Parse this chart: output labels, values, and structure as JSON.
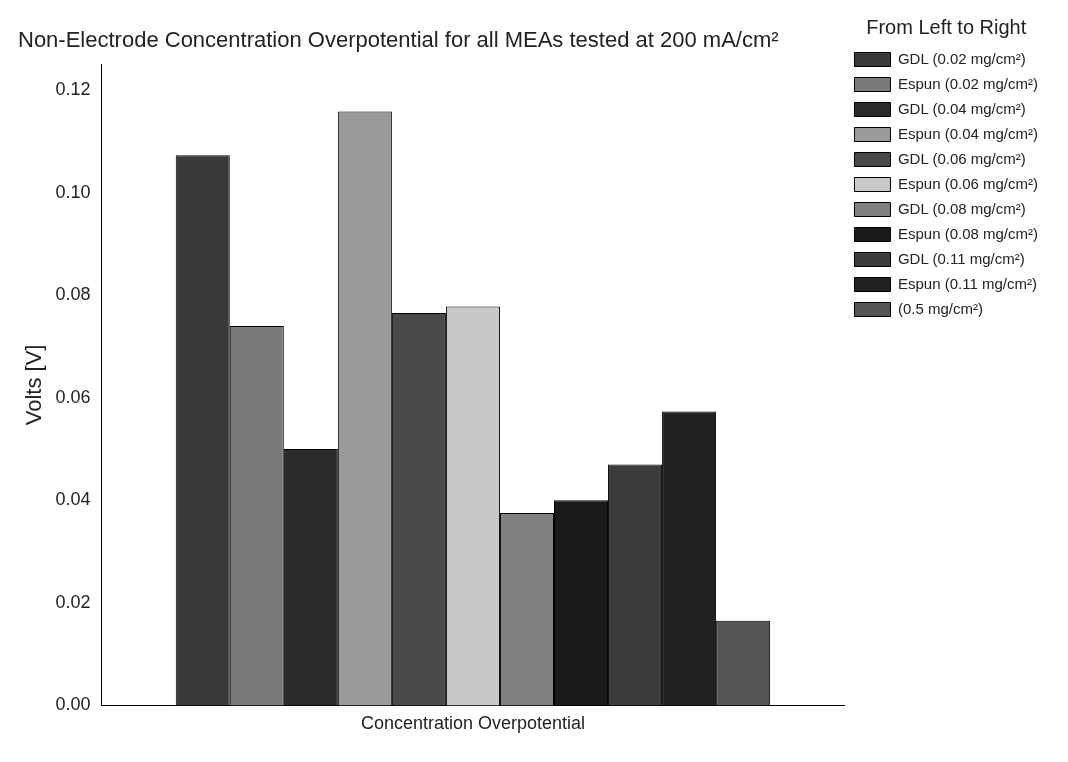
{
  "chart_data": {
    "type": "bar",
    "title": "Non-Electrode Concentration Overpotential for all MEAs tested at 200 mA/cm²",
    "ylabel": "Volts [V]",
    "legend_title": "From Left to Right",
    "categories": [
      "Concentration Overpotential"
    ],
    "series": [
      {
        "name": "GDL (0.02 mg/cm²)",
        "color": "#3a3a3a",
        "values": [
          0.1073
        ]
      },
      {
        "name": "Espun (0.02 mg/cm²)",
        "color": "#7a7a7a",
        "values": [
          0.074
        ]
      },
      {
        "name": "GDL (0.04 mg/cm²)",
        "color": "#2a2a2a",
        "values": [
          0.05
        ]
      },
      {
        "name": "Espun (0.04 mg/cm²)",
        "color": "#9a9a9a",
        "values": [
          0.1158
        ]
      },
      {
        "name": "GDL (0.06 mg/cm²)",
        "color": "#4a4a4a",
        "values": [
          0.0765
        ]
      },
      {
        "name": "Espun (0.06 mg/cm²)",
        "color": "#c8c8c8",
        "values": [
          0.0778
        ]
      },
      {
        "name": "GDL (0.08 mg/cm²)",
        "color": "#808080",
        "values": [
          0.0375
        ]
      },
      {
        "name": "Espun (0.08 mg/cm²)",
        "color": "#1a1a1a",
        "values": [
          0.04
        ]
      },
      {
        "name": "GDL (0.11 mg/cm²)",
        "color": "#3c3c3c",
        "values": [
          0.047
        ]
      },
      {
        "name": "Espun (0.11 mg/cm²)",
        "color": "#222222",
        "values": [
          0.0573
        ]
      },
      {
        "name": "(0.5 mg/cm²)",
        "color": "#555555",
        "values": [
          0.0165
        ]
      }
    ],
    "ylim": [
      0,
      0.125
    ],
    "yticks": [
      {
        "value": 0,
        "label": "0.00"
      },
      {
        "value": 0.02,
        "label": "0.02"
      },
      {
        "value": 0.04,
        "label": "0.04"
      },
      {
        "value": 0.06,
        "label": "0.06"
      },
      {
        "value": 0.08,
        "label": "0.08"
      },
      {
        "value": 0.1,
        "label": "0.10"
      },
      {
        "value": 0.12,
        "label": "0.12"
      }
    ],
    "grid": false,
    "legend": "right"
  }
}
